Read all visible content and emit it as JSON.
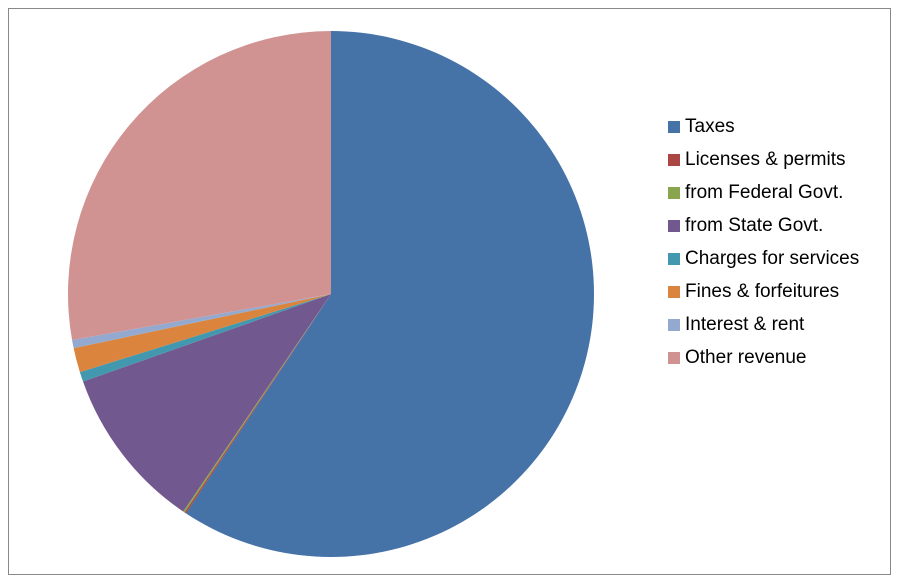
{
  "chart_data": {
    "type": "pie",
    "categories": [
      "Taxes",
      "Licenses & permits",
      "from Federal Govt.",
      "from State Govt.",
      "Charges for services",
      "Fines & forfeitures",
      "Interest & rent",
      "Other revenue"
    ],
    "values": [
      59.3,
      0.1,
      0.1,
      10.1,
      0.6,
      1.5,
      0.5,
      27.8
    ],
    "colors": [
      "#4572a7",
      "#aa4643",
      "#89a54e",
      "#71588f",
      "#4198af",
      "#db843d",
      "#93a9cf",
      "#d19392"
    ],
    "legend": "right"
  }
}
